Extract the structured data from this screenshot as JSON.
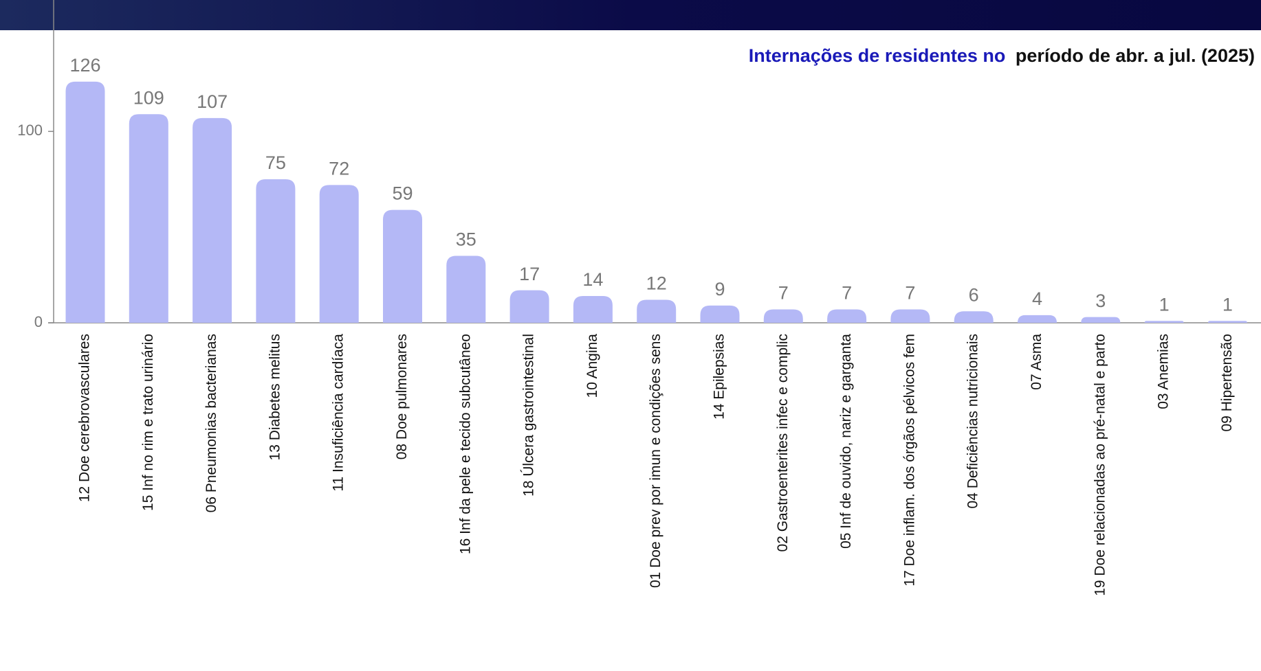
{
  "chart_data": {
    "type": "bar",
    "title_parts": [
      "Internações de residentes no",
      "período de abr. a jul. (2025)"
    ],
    "title_colors": [
      "#1a1ab8",
      "#111111"
    ],
    "categories": [
      "12 Doe cerebrovasculares",
      "15 Inf no rim e trato urinário",
      "06 Pneumonias bacterianas",
      "13 Diabetes melitus",
      "11 Insuficiência cardíaca",
      "08 Doe pulmonares",
      "16 Inf da pele e tecido subcutâneo",
      "18 Úlcera gastrointestinal",
      "10 Angina",
      "01 Doe prev por imun e condições sens",
      "14 Epilepsias",
      "02 Gastroenterites infec e complic",
      "05 Inf de ouvido, nariz e garganta",
      "17 Doe inflam. dos órgãos pélvicos fem",
      "04 Deficiências nutricionais",
      "07 Asma",
      "19 Doe relacionadas ao pré-natal e parto",
      "03 Anemias",
      "09 Hipertensão"
    ],
    "values": [
      126,
      109,
      107,
      75,
      72,
      59,
      35,
      17,
      14,
      12,
      9,
      7,
      7,
      7,
      6,
      4,
      3,
      1,
      1
    ],
    "color": "#b4b8f6",
    "ylim": [
      0,
      150
    ],
    "yticks": [
      0,
      100
    ],
    "grid": false
  }
}
